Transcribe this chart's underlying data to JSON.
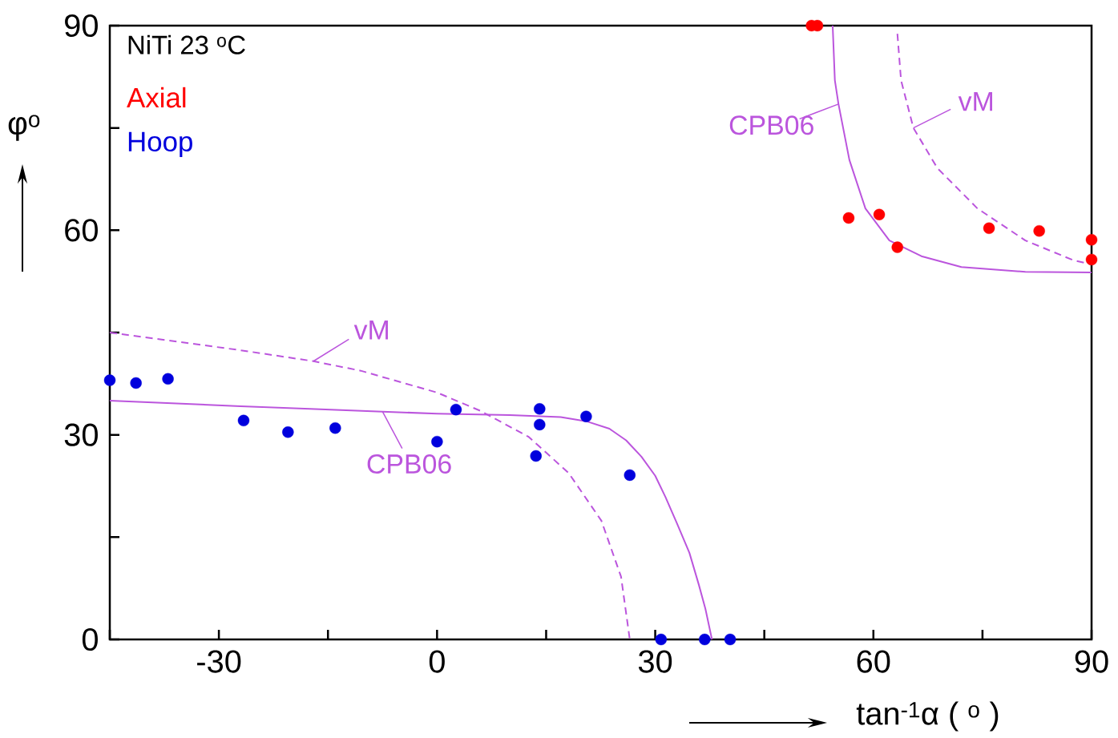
{
  "chart_data": {
    "type": "scatter",
    "xlabel": "tan$^{-1}$α ( $^{o}$ )",
    "ylabel": "φ$^{o}$",
    "xlim": [
      -45,
      90
    ],
    "ylim": [
      0,
      90
    ],
    "xticks": [
      {
        "value": -45,
        "label": null
      },
      -30,
      {
        "value": -15,
        "label": null
      },
      0,
      {
        "value": 15,
        "label": null
      },
      30,
      {
        "value": 45,
        "label": null
      },
      60,
      {
        "value": 75,
        "label": null
      },
      90
    ],
    "yticks": [
      0,
      {
        "value": 15,
        "label": null
      },
      30,
      {
        "value": 45,
        "label": null
      },
      60,
      {
        "value": 75,
        "label": null
      },
      90
    ],
    "grid": false,
    "legend": "top left",
    "annotations": [
      "NiTi 23 $^{o}$C",
      {
        "text": "vM",
        "x": 65.5,
        "y": 75
      },
      {
        "text": "CPB06",
        "x": 55.2,
        "y": 78.5
      },
      {
        "text": "vM",
        "x": -17,
        "y": 40.8
      },
      {
        "text": "CPB06",
        "x": -7.5,
        "y": 33.4
      }
    ],
    "series": [
      {
        "name": "Axial",
        "color": "#ff0000",
        "x": [
          51.5,
          52.3,
          56.6,
          60.8,
          63.3,
          75.9,
          82.8,
          90,
          90
        ],
        "values": [
          90,
          90,
          61.8,
          62.3,
          57.5,
          60.3,
          59.9,
          58.6,
          55.7
        ]
      },
      {
        "name": "Hoop",
        "color": "#0000dd",
        "x": [
          -45,
          -41.4,
          -37,
          -26.6,
          -20.5,
          -14,
          0,
          2.6,
          14.1,
          14.1,
          13.6,
          20.5,
          26.5,
          30.8,
          36.8,
          40.3
        ],
        "values": [
          38,
          37.6,
          38.2,
          32.1,
          30.4,
          31,
          29,
          33.7,
          33.8,
          31.5,
          26.9,
          32.7,
          24.1,
          0,
          0,
          0
        ]
      },
      {
        "type": "line",
        "color": "#bb55dd",
        "line_style": "solid",
        "x": [
          -45,
          -27,
          -7.5,
          0,
          10,
          17,
          20.5,
          23.7,
          26,
          28.1,
          30,
          31.4,
          33,
          34.7,
          36,
          36.9,
          37.8
        ],
        "values": [
          35,
          34.2,
          33.4,
          33.1,
          32.9,
          32.6,
          32,
          30.9,
          29.2,
          26.8,
          24,
          20.9,
          17,
          12.7,
          8,
          4.5,
          0
        ]
      },
      {
        "type": "line",
        "color": "#bb55dd",
        "line_style": "solid",
        "x": [
          54.4,
          54.7,
          55.2,
          56.7,
          58.9,
          62.2,
          66.6,
          72.1,
          80.9,
          90
        ],
        "values": [
          90,
          82,
          78.5,
          70.3,
          63.2,
          58.5,
          56.2,
          54.6,
          53.9,
          53.8
        ]
      },
      {
        "type": "line",
        "color": "#bb55dd",
        "line_style": "dashed",
        "x": [
          -45,
          -27,
          -17,
          -10.5,
          0,
          6,
          12.6,
          18.1,
          22.6,
          25.3,
          26.5
        ],
        "values": [
          45,
          42.4,
          40.8,
          39.4,
          36.2,
          33.5,
          29.7,
          24.4,
          17.4,
          9.2,
          0
        ]
      },
      {
        "type": "line",
        "color": "#bb55dd",
        "line_style": "dashed",
        "x": [
          63.3,
          63.8,
          65.5,
          68.8,
          74.3,
          80.9,
          87.5,
          90
        ],
        "values": [
          88.8,
          82,
          75,
          69.1,
          63.2,
          58.5,
          55.6,
          55
        ]
      }
    ]
  }
}
